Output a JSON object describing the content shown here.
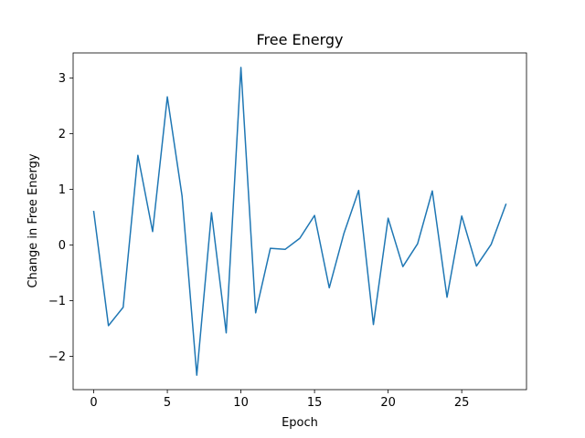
{
  "chart_data": {
    "type": "line",
    "title": "Free Energy",
    "xlabel": "Epoch",
    "ylabel": "Change in Free Energy",
    "xlim": [
      -1.4,
      29.4
    ],
    "ylim": [
      -2.6,
      3.45
    ],
    "xticks": [
      0,
      5,
      10,
      15,
      20,
      25
    ],
    "yticks": [
      -2,
      -1,
      0,
      1,
      2,
      3
    ],
    "ytick_labels": [
      "−2",
      "−1",
      "0",
      "1",
      "2",
      "3"
    ],
    "grid": false,
    "line_color": "#1f77b4",
    "series": [
      {
        "x": [
          0,
          1,
          2,
          3,
          4,
          5,
          6,
          7,
          8,
          9,
          10,
          11,
          12,
          13,
          14,
          15,
          16,
          17,
          18,
          19,
          20,
          21,
          22,
          23,
          24,
          25,
          26,
          27,
          28
        ],
        "values": [
          0.6,
          -1.45,
          -1.12,
          1.61,
          0.24,
          2.66,
          0.88,
          -2.34,
          0.58,
          -1.58,
          3.19,
          -1.22,
          -0.06,
          -0.08,
          0.12,
          0.53,
          -0.77,
          0.21,
          0.98,
          -1.43,
          0.48,
          -0.39,
          0.02,
          0.97,
          -0.94,
          0.52,
          -0.38,
          0.01,
          0.73
        ]
      }
    ]
  }
}
